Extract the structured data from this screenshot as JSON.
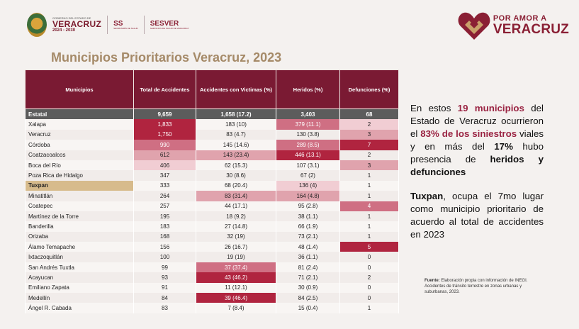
{
  "header": {
    "gov_small": "GOBIERNO DEL ESTADO DE",
    "gov_name": "VERACRUZ",
    "gov_years": "2024 - 2030",
    "ss": "SS",
    "ss_sub": "SECRETARÍA DE SALUD",
    "sesver": "SESVER",
    "sesver_sub": "SERVICIOS DE SALUD DE VERACRUZ",
    "brand_top": "POR AMOR A",
    "brand_bottom": "VERACRUZ"
  },
  "title": "Municipios Prioritarios Veracruz, 2023",
  "table": {
    "headers": [
      "Municipios",
      "Total de Accidentes",
      "Accidentes con Victimas (%)",
      "Heridos (%)",
      "Defunciones (%)"
    ],
    "rows": [
      [
        "Estatal",
        "9,659",
        "1,658 (17.2)",
        "3,403",
        "68"
      ],
      [
        "Xalapa",
        "1,833",
        "183 (10)",
        "379 (11.1)",
        "2"
      ],
      [
        "Veracruz",
        "1,750",
        "83 (4.7)",
        "130 (3.8)",
        "3"
      ],
      [
        "Córdoba",
        "990",
        "145 (14.6)",
        "289 (8.5)",
        "7"
      ],
      [
        "Coatzacoalcos",
        "612",
        "143 (23.4)",
        "446 (13.1)",
        "2"
      ],
      [
        "Boca del Río",
        "406",
        "62 (15.3)",
        "107 (3.1)",
        "3"
      ],
      [
        "Poza Rica de Hidalgo",
        "347",
        "30 (8.6)",
        "67 (2)",
        "1"
      ],
      [
        "Tuxpan",
        "333",
        "68 (20.4)",
        "136 (4)",
        "1"
      ],
      [
        "Minatitlán",
        "264",
        "83 (31.4)",
        "164 (4.8)",
        "1"
      ],
      [
        "Coatepec",
        "257",
        "44 (17.1)",
        "95 (2.8)",
        "4"
      ],
      [
        "Martínez de la Torre",
        "195",
        "18 (9.2)",
        "38 (1.1)",
        "1"
      ],
      [
        "Banderilla",
        "183",
        "27 (14.8)",
        "66 (1.9)",
        "1"
      ],
      [
        "Orizaba",
        "168",
        "32 (19)",
        "73 (2.1)",
        "1"
      ],
      [
        "Álamo Temapache",
        "156",
        "26 (16.7)",
        "48 (1.4)",
        "5"
      ],
      [
        "Ixtaczoquitlán",
        "100",
        "19 (19)",
        "36 (1.1)",
        "0"
      ],
      [
        "San Andrés Tuxtla",
        "99",
        "37 (37.4)",
        "81 (2.4)",
        "0"
      ],
      [
        "Acayucan",
        "93",
        "43 (46.2)",
        "71 (2.1)",
        "2"
      ],
      [
        "Emiliano Zapata",
        "91",
        "11  (12.1)",
        "30 (0.9)",
        "0"
      ],
      [
        "Medellín",
        "84",
        "39 (46.4)",
        "84 (2.5)",
        "0"
      ],
      [
        "Ángel R. Cabada",
        "83",
        "7 (8.4)",
        "15 (0.4)",
        "1"
      ]
    ],
    "colors": {
      "dark": "#b0243f",
      "mid": "#cf6f83",
      "light": "#e0a3ad",
      "pale": "#f1cdd3"
    },
    "shading": [
      [
        "",
        "",
        "",
        "",
        ""
      ],
      [
        "",
        "dark",
        "",
        "mid",
        "pale"
      ],
      [
        "",
        "dark",
        "",
        "",
        "light"
      ],
      [
        "",
        "mid",
        "",
        "mid",
        "dark"
      ],
      [
        "",
        "light",
        "light",
        "dark",
        ""
      ],
      [
        "",
        "pale",
        "",
        "",
        "light"
      ],
      [
        "",
        "",
        "",
        "",
        ""
      ],
      [
        "",
        "",
        "",
        "pale",
        ""
      ],
      [
        "",
        "",
        "light",
        "light",
        ""
      ],
      [
        "",
        "",
        "",
        "",
        "mid"
      ],
      [
        "",
        "",
        "",
        "",
        ""
      ],
      [
        "",
        "",
        "",
        "",
        ""
      ],
      [
        "",
        "",
        "",
        "",
        ""
      ],
      [
        "",
        "",
        "",
        "",
        "dark"
      ],
      [
        "",
        "",
        "",
        "",
        ""
      ],
      [
        "",
        "",
        "mid",
        "",
        ""
      ],
      [
        "",
        "",
        "dark",
        "",
        ""
      ],
      [
        "",
        "",
        "",
        "",
        ""
      ],
      [
        "",
        "",
        "dark",
        "",
        ""
      ],
      [
        "",
        "",
        "",
        "",
        ""
      ]
    ]
  },
  "side": {
    "p1_a": "En estos",
    "p1_b": "19 municipios",
    "p1_c": "del Estado de Veracruz ocurrieron el",
    "p1_d": "83% de los siniestros",
    "p1_e": "viales y en más del",
    "p1_f": "17%",
    "p1_g": "hubo presencia de",
    "p1_h": "heridos y defunciones",
    "p2_a": "Tuxpan",
    "p2_b": ", ocupa el 7mo lugar como municipio prioritario de acuerdo al total de accidentes en 2023"
  },
  "source": {
    "label": "Fuente:",
    "text": "Elaboración propia con información de INEGI. Accidentes de tránsito terrestre en zonas urbanas y suburbanas, 2023."
  }
}
